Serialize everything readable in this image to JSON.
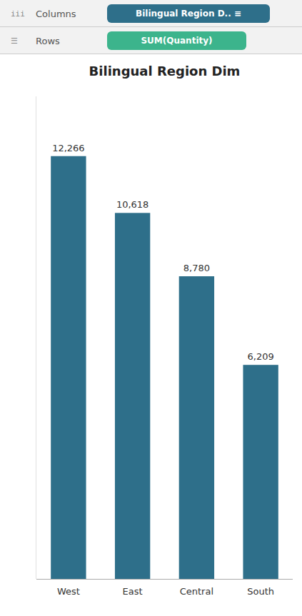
{
  "chart_data": {
    "type": "bar",
    "title": "Bilingual Region Dim",
    "categories": [
      "West",
      "East",
      "Central",
      "South"
    ],
    "values": [
      12266,
      10618,
      8780,
      6209
    ],
    "value_labels": [
      "12,266",
      "10,618",
      "8,780",
      "6,209"
    ],
    "color": "#2e6f8a",
    "ylim": [
      0,
      14000
    ],
    "data_labels": true,
    "tick_labels": "x",
    "grid": false,
    "annotations": [
      {
        "text": "iii"
      },
      {
        "text": "Columns"
      },
      {
        "text": "Bilingual Region D.. ≡",
        "color": "#2e6f8a"
      },
      {
        "text": "☰"
      },
      {
        "text": "Rows"
      },
      {
        "text": "SUM(Quantity)",
        "color": "#3cb48c"
      }
    ]
  }
}
